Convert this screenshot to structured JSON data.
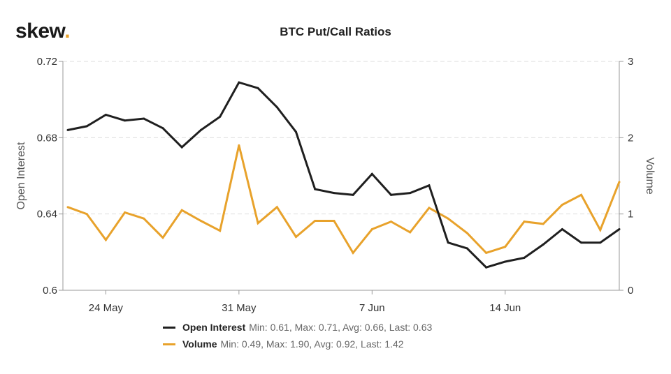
{
  "logo": {
    "text": "skew",
    "dot": "."
  },
  "chart_data": {
    "type": "line",
    "title": "BTC Put/Call Ratios",
    "x": [
      "2020-05-22",
      "2020-05-23",
      "2020-05-24",
      "2020-05-25",
      "2020-05-26",
      "2020-05-27",
      "2020-05-28",
      "2020-05-29",
      "2020-05-30",
      "2020-05-31",
      "2020-06-01",
      "2020-06-02",
      "2020-06-03",
      "2020-06-04",
      "2020-06-05",
      "2020-06-06",
      "2020-06-07",
      "2020-06-08",
      "2020-06-09",
      "2020-06-10",
      "2020-06-11",
      "2020-06-12",
      "2020-06-13",
      "2020-06-14",
      "2020-06-15",
      "2020-06-16",
      "2020-06-17",
      "2020-06-18",
      "2020-06-19",
      "2020-06-20"
    ],
    "xticks": [
      {
        "label": "24 May",
        "index": 2
      },
      {
        "label": "31 May",
        "index": 9
      },
      {
        "label": "7 Jun",
        "index": 16
      },
      {
        "label": "14 Jun",
        "index": 23
      }
    ],
    "y_left": {
      "label": "Open Interest",
      "lim": [
        0.6,
        0.72
      ],
      "ticks": [
        "0.6",
        "0.64",
        "0.68",
        "0.72"
      ]
    },
    "y_right": {
      "label": "Volume",
      "lim": [
        0,
        3
      ],
      "ticks": [
        "0",
        "1",
        "2",
        "3"
      ]
    },
    "grid": true,
    "legend_position": "bottom",
    "series": [
      {
        "name": "Open Interest",
        "axis": "left",
        "color": "#1f1f1f",
        "stats": "Min: 0.61, Max: 0.71, Avg: 0.66, Last: 0.63",
        "values": [
          0.684,
          0.686,
          0.692,
          0.689,
          0.69,
          0.685,
          0.675,
          0.684,
          0.691,
          0.709,
          0.706,
          0.696,
          0.683,
          0.653,
          0.651,
          0.65,
          0.661,
          0.65,
          0.651,
          0.655,
          0.625,
          0.622,
          0.612,
          0.615,
          0.617,
          0.624,
          0.632,
          0.625,
          0.625,
          0.632
        ]
      },
      {
        "name": "Volume",
        "axis": "right",
        "color": "#e8a22b",
        "stats": "Min: 0.49, Max: 1.90, Avg: 0.92, Last: 1.42",
        "values": [
          1.09,
          1.0,
          0.66,
          1.02,
          0.94,
          0.69,
          1.05,
          0.91,
          0.78,
          1.9,
          0.88,
          1.09,
          0.7,
          0.91,
          0.91,
          0.49,
          0.8,
          0.9,
          0.76,
          1.08,
          0.94,
          0.75,
          0.49,
          0.57,
          0.9,
          0.87,
          1.12,
          1.25,
          0.79,
          1.42
        ]
      }
    ]
  }
}
